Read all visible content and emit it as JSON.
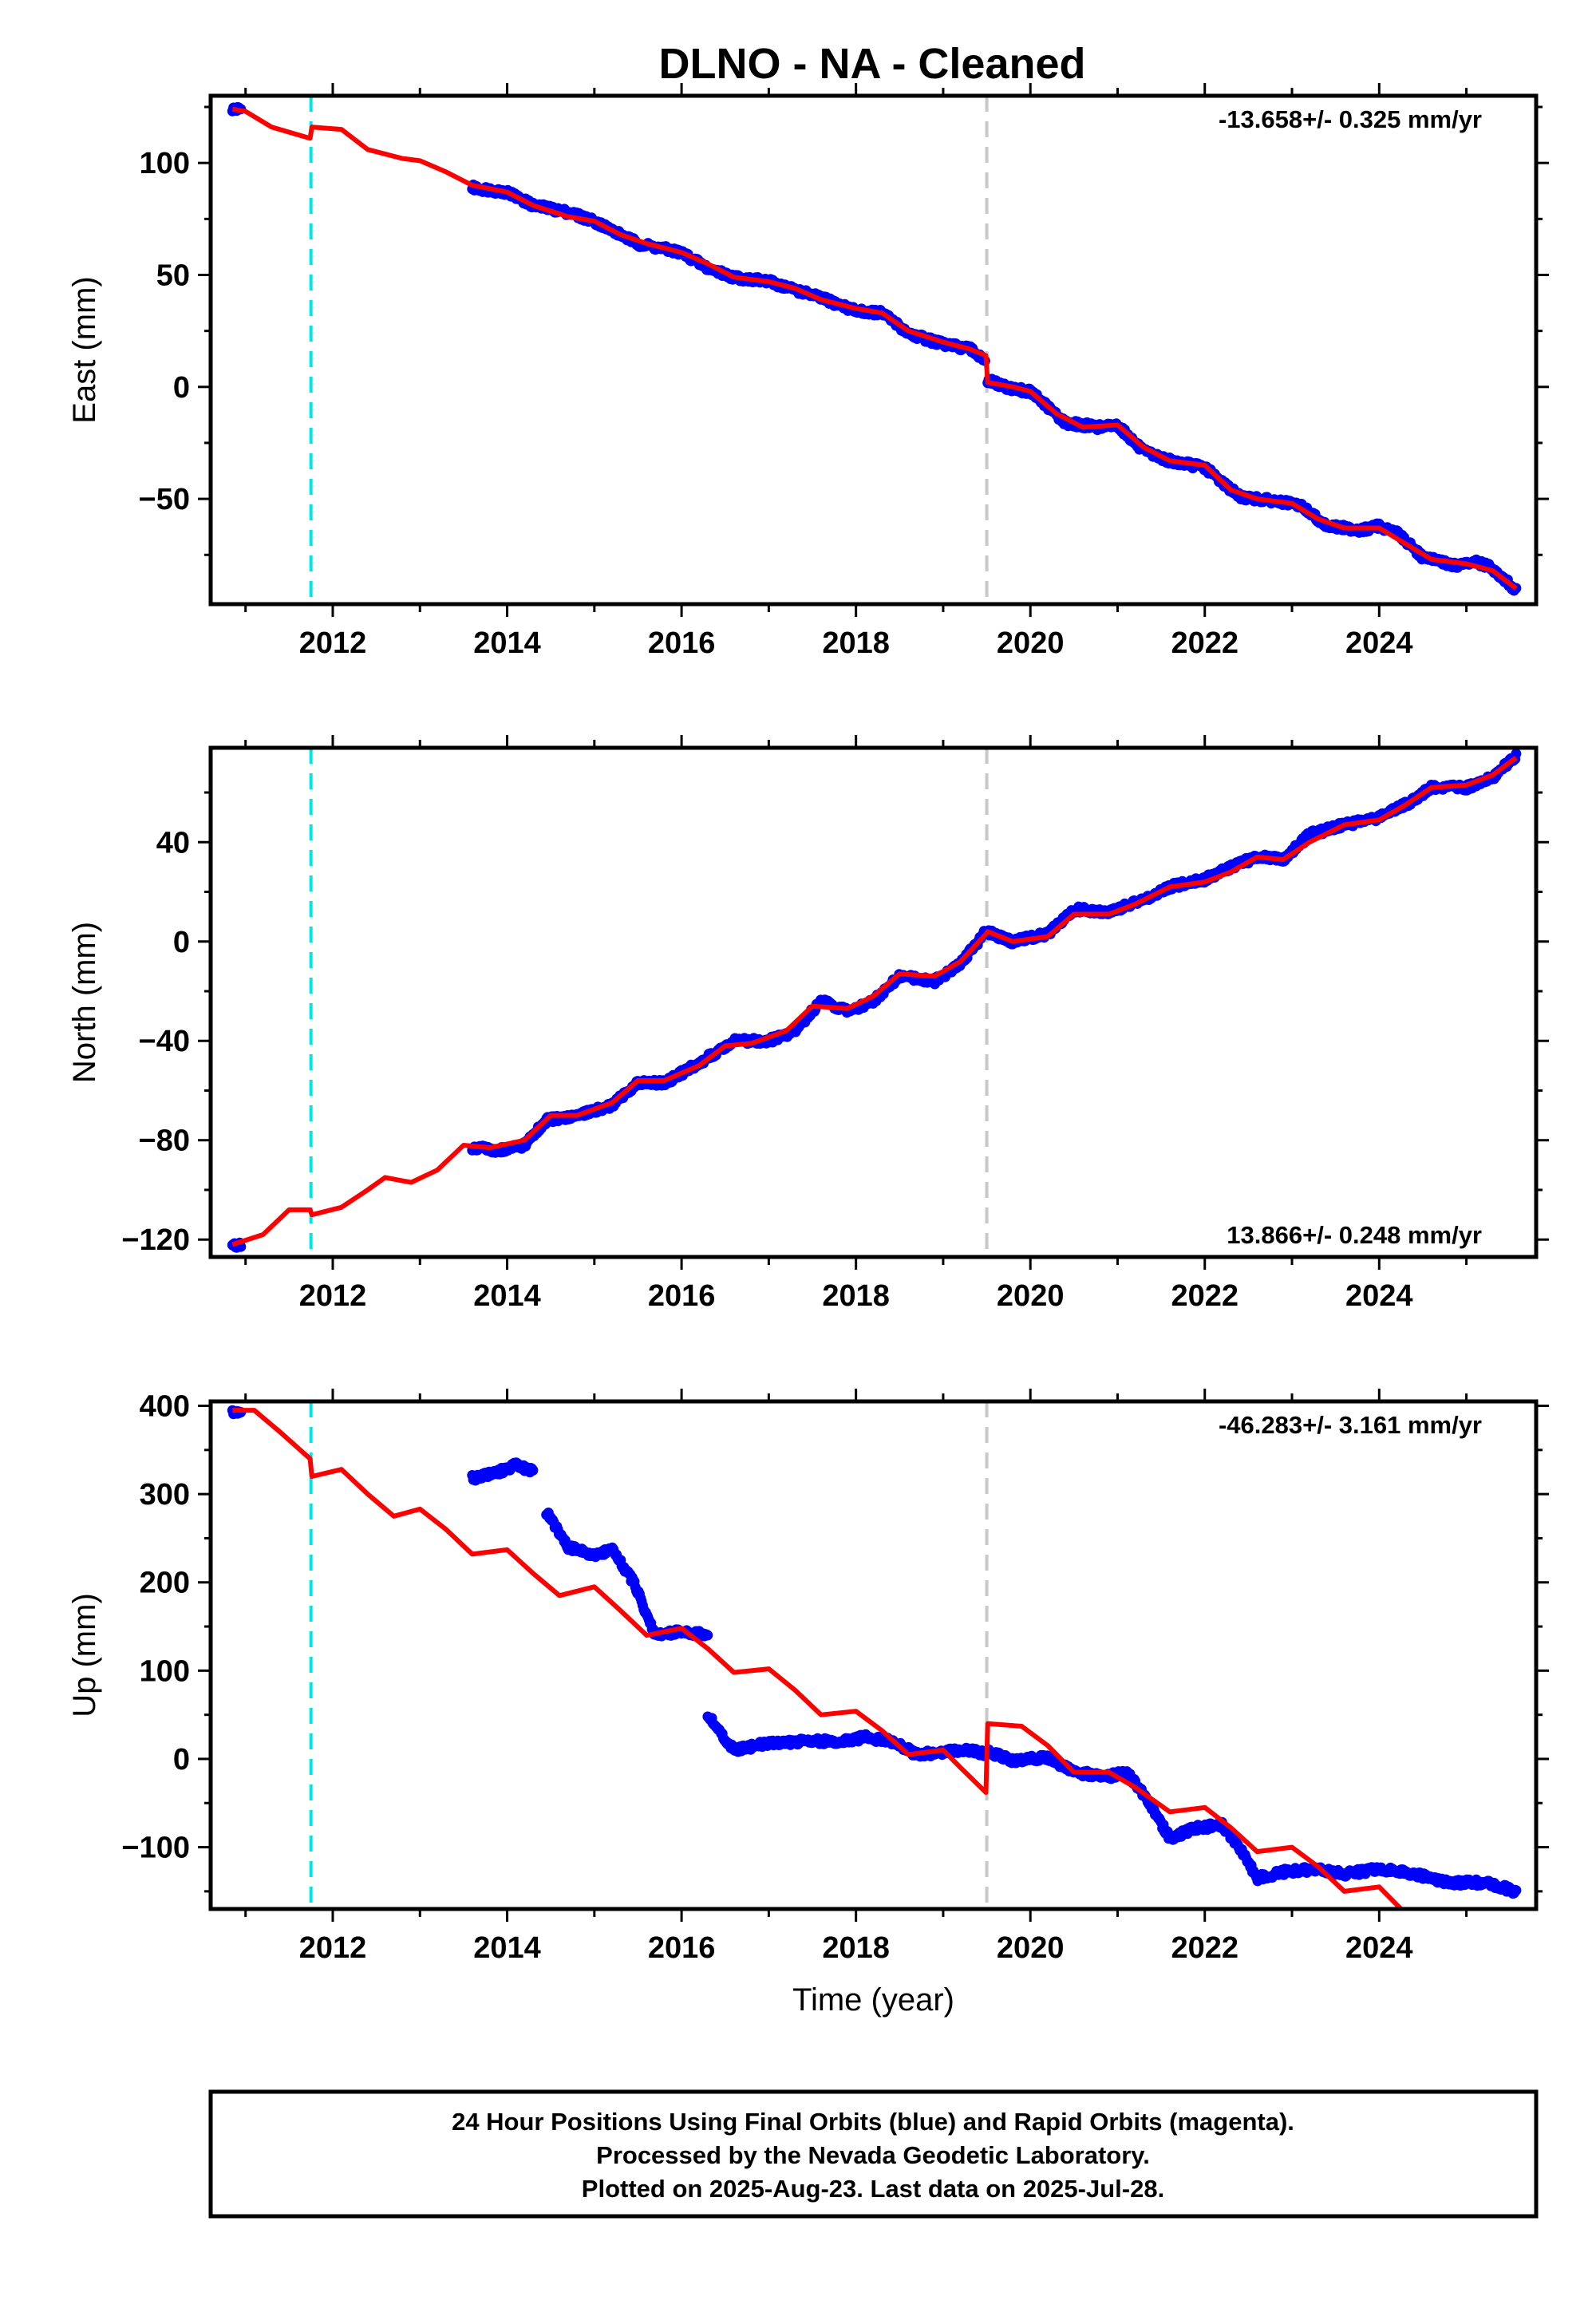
{
  "title": "DLNO  - NA - Cleaned",
  "colors": {
    "final_orbits": "#0000ff",
    "model": "#ff0000",
    "equipment_change": "#00e5e5",
    "other_offset": "#c8c8c8",
    "frame": "#000000"
  },
  "footer": {
    "line1": "24 Hour Positions Using Final Orbits (blue) and Rapid Orbits (magenta).",
    "line2": "Processed by the Nevada Geodetic Laboratory.",
    "line3": "Plotted on 2025-Aug-23. Last data on 2025-Jul-28."
  },
  "chart_data": [
    {
      "type": "scatter",
      "component": "east",
      "ylabel": "East (mm)",
      "xlabel": "",
      "xlim": [
        2010.6,
        2025.8
      ],
      "ylim": [
        -97,
        130
      ],
      "yticks": [
        -50,
        0,
        50,
        100
      ],
      "xticks": [
        2012,
        2014,
        2016,
        2018,
        2020,
        2022,
        2024
      ],
      "rate_text": "-13.658+/- 0.325 mm/yr",
      "rate_position": "top-right",
      "offsets": {
        "equipment_change": 2011.75,
        "other": 2019.5
      },
      "data_segments": [
        [
          [
            2010.85,
            124
          ],
          [
            2010.95,
            124
          ]
        ],
        [
          [
            2013.6,
            89
          ],
          [
            2014.0,
            87
          ],
          [
            2014.3,
            81
          ],
          [
            2014.7,
            78
          ],
          [
            2015.0,
            74
          ],
          [
            2015.5,
            64
          ],
          [
            2016.0,
            60
          ],
          [
            2016.3,
            53
          ],
          [
            2016.6,
            49
          ],
          [
            2017.0,
            47
          ],
          [
            2017.5,
            41
          ],
          [
            2018.0,
            34
          ],
          [
            2018.3,
            33
          ],
          [
            2018.6,
            24
          ],
          [
            2019.0,
            19
          ],
          [
            2019.3,
            17
          ],
          [
            2019.49,
            12
          ]
        ],
        [
          [
            2019.51,
            3
          ],
          [
            2019.8,
            -1
          ],
          [
            2020.0,
            -2
          ],
          [
            2020.4,
            -16
          ],
          [
            2020.8,
            -18
          ],
          [
            2021.0,
            -17
          ],
          [
            2021.3,
            -29
          ],
          [
            2021.6,
            -33
          ],
          [
            2022.0,
            -36
          ],
          [
            2022.4,
            -49
          ],
          [
            2022.8,
            -51
          ],
          [
            2023.1,
            -53
          ],
          [
            2023.4,
            -62
          ],
          [
            2023.8,
            -64
          ],
          [
            2024.0,
            -62
          ],
          [
            2024.2,
            -65
          ],
          [
            2024.5,
            -76
          ],
          [
            2024.9,
            -80
          ],
          [
            2025.1,
            -78
          ],
          [
            2025.3,
            -81
          ],
          [
            2025.57,
            -91
          ]
        ]
      ],
      "model": [
        [
          2010.85,
          124
        ],
        [
          2011.0,
          123
        ],
        [
          2011.3,
          116
        ],
        [
          2011.74,
          111
        ],
        [
          2011.76,
          116
        ],
        [
          2012.1,
          115
        ],
        [
          2012.4,
          106
        ],
        [
          2012.8,
          102
        ],
        [
          2013.0,
          101
        ],
        [
          2013.3,
          96
        ],
        [
          2013.6,
          90
        ],
        [
          2014.0,
          87
        ],
        [
          2014.3,
          81
        ],
        [
          2014.7,
          76
        ],
        [
          2015.0,
          74
        ],
        [
          2015.3,
          68
        ],
        [
          2015.6,
          64
        ],
        [
          2016.0,
          60
        ],
        [
          2016.3,
          55
        ],
        [
          2016.6,
          49
        ],
        [
          2017.0,
          47
        ],
        [
          2017.3,
          44
        ],
        [
          2017.6,
          39
        ],
        [
          2018.0,
          35
        ],
        [
          2018.3,
          33
        ],
        [
          2018.6,
          25
        ],
        [
          2019.0,
          20
        ],
        [
          2019.3,
          17
        ],
        [
          2019.49,
          14
        ],
        [
          2019.51,
          2
        ],
        [
          2019.8,
          0
        ],
        [
          2020.0,
          -2
        ],
        [
          2020.3,
          -12
        ],
        [
          2020.6,
          -18
        ],
        [
          2021.0,
          -17
        ],
        [
          2021.3,
          -27
        ],
        [
          2021.6,
          -33
        ],
        [
          2022.0,
          -35
        ],
        [
          2022.3,
          -46
        ],
        [
          2022.6,
          -50
        ],
        [
          2023.0,
          -52
        ],
        [
          2023.3,
          -59
        ],
        [
          2023.6,
          -63
        ],
        [
          2024.0,
          -63
        ],
        [
          2024.3,
          -70
        ],
        [
          2024.6,
          -77
        ],
        [
          2025.0,
          -79
        ],
        [
          2025.3,
          -82
        ],
        [
          2025.57,
          -90
        ]
      ]
    },
    {
      "type": "scatter",
      "component": "north",
      "ylabel": "North (mm)",
      "xlabel": "",
      "xlim": [
        2010.6,
        2025.8
      ],
      "ylim": [
        -127,
        78
      ],
      "yticks": [
        -120,
        -80,
        -40,
        0,
        40
      ],
      "xticks": [
        2012,
        2014,
        2016,
        2018,
        2020,
        2022,
        2024
      ],
      "rate_text": "13.866+/- 0.248 mm/yr",
      "rate_position": "bottom-right",
      "offsets": {
        "equipment_change": 2011.75,
        "other": 2019.5
      },
      "data_segments": [
        [
          [
            2010.85,
            -122
          ],
          [
            2010.95,
            -122
          ]
        ],
        [
          [
            2013.6,
            -83
          ],
          [
            2013.9,
            -84
          ],
          [
            2014.2,
            -82
          ],
          [
            2014.45,
            -72
          ],
          [
            2014.8,
            -70
          ],
          [
            2015.2,
            -66
          ],
          [
            2015.5,
            -57
          ],
          [
            2015.8,
            -57
          ],
          [
            2016.2,
            -49
          ],
          [
            2016.6,
            -40
          ],
          [
            2017.0,
            -40
          ],
          [
            2017.3,
            -36
          ],
          [
            2017.6,
            -24
          ],
          [
            2017.9,
            -28
          ],
          [
            2018.2,
            -24
          ],
          [
            2018.5,
            -14
          ],
          [
            2018.9,
            -16
          ],
          [
            2019.2,
            -9
          ],
          [
            2019.49,
            4
          ]
        ],
        [
          [
            2019.51,
            4
          ],
          [
            2019.8,
            0
          ],
          [
            2020.2,
            3
          ],
          [
            2020.5,
            13
          ],
          [
            2020.9,
            12
          ],
          [
            2021.3,
            17
          ],
          [
            2021.6,
            22
          ],
          [
            2022.0,
            25
          ],
          [
            2022.3,
            30
          ],
          [
            2022.6,
            34
          ],
          [
            2022.9,
            33
          ],
          [
            2023.2,
            43
          ],
          [
            2023.6,
            47
          ],
          [
            2024.0,
            50
          ],
          [
            2024.3,
            55
          ],
          [
            2024.6,
            62
          ],
          [
            2025.0,
            62
          ],
          [
            2025.3,
            66
          ],
          [
            2025.57,
            75
          ]
        ]
      ],
      "model": [
        [
          2010.85,
          -122
        ],
        [
          2011.2,
          -118
        ],
        [
          2011.5,
          -108
        ],
        [
          2011.74,
          -108
        ],
        [
          2011.76,
          -110
        ],
        [
          2012.1,
          -107
        ],
        [
          2012.4,
          -100
        ],
        [
          2012.6,
          -95
        ],
        [
          2012.9,
          -97
        ],
        [
          2013.2,
          -92
        ],
        [
          2013.5,
          -82
        ],
        [
          2013.8,
          -83
        ],
        [
          2014.2,
          -80
        ],
        [
          2014.5,
          -70
        ],
        [
          2014.8,
          -70
        ],
        [
          2015.2,
          -65
        ],
        [
          2015.5,
          -56
        ],
        [
          2015.8,
          -56
        ],
        [
          2016.2,
          -50
        ],
        [
          2016.5,
          -42
        ],
        [
          2016.8,
          -41
        ],
        [
          2017.2,
          -36
        ],
        [
          2017.5,
          -26
        ],
        [
          2017.9,
          -27
        ],
        [
          2018.2,
          -22
        ],
        [
          2018.5,
          -13
        ],
        [
          2018.9,
          -14
        ],
        [
          2019.2,
          -8
        ],
        [
          2019.49,
          3
        ],
        [
          2019.51,
          4
        ],
        [
          2019.8,
          0
        ],
        [
          2020.2,
          2
        ],
        [
          2020.5,
          11
        ],
        [
          2020.9,
          11
        ],
        [
          2021.2,
          15
        ],
        [
          2021.6,
          22
        ],
        [
          2022.0,
          24
        ],
        [
          2022.3,
          28
        ],
        [
          2022.6,
          34
        ],
        [
          2022.9,
          33
        ],
        [
          2023.2,
          40
        ],
        [
          2023.6,
          47
        ],
        [
          2024.0,
          49
        ],
        [
          2024.3,
          55
        ],
        [
          2024.6,
          62
        ],
        [
          2025.0,
          63
        ],
        [
          2025.3,
          67
        ],
        [
          2025.57,
          74
        ]
      ]
    },
    {
      "type": "scatter",
      "component": "up",
      "ylabel": "Up (mm)",
      "xlabel": "Time (year)",
      "xlim": [
        2010.6,
        2025.8
      ],
      "ylim": [
        -170,
        405
      ],
      "yticks": [
        -100,
        0,
        100,
        200,
        300,
        400
      ],
      "xticks": [
        2012,
        2014,
        2016,
        2018,
        2020,
        2022,
        2024
      ],
      "rate_text": "-46.283+/- 3.161 mm/yr",
      "rate_position": "top-right",
      "offsets": {
        "equipment_change": 2011.75,
        "other": 2019.5
      },
      "data_segments": [
        [
          [
            2010.85,
            393
          ],
          [
            2010.95,
            393
          ]
        ],
        [
          [
            2013.6,
            318
          ],
          [
            2013.9,
            325
          ],
          [
            2014.1,
            333
          ],
          [
            2014.3,
            325
          ]
        ],
        [
          [
            2014.45,
            280
          ],
          [
            2014.7,
            240
          ],
          [
            2015.0,
            230
          ],
          [
            2015.2,
            238
          ],
          [
            2015.45,
            200
          ],
          [
            2015.7,
            140
          ],
          [
            2016.0,
            145
          ],
          [
            2016.3,
            140
          ]
        ],
        [
          [
            2016.3,
            50
          ],
          [
            2016.6,
            10
          ],
          [
            2017.0,
            18
          ],
          [
            2017.5,
            20
          ],
          [
            2017.9,
            20
          ],
          [
            2018.1,
            25
          ],
          [
            2018.4,
            20
          ],
          [
            2018.7,
            5
          ],
          [
            2019.0,
            8
          ],
          [
            2019.3,
            10
          ],
          [
            2019.49,
            5
          ]
        ],
        [
          [
            2019.51,
            8
          ],
          [
            2019.8,
            -2
          ],
          [
            2020.2,
            2
          ],
          [
            2020.5,
            -15
          ],
          [
            2020.9,
            -20
          ],
          [
            2021.1,
            -15
          ],
          [
            2021.3,
            -40
          ],
          [
            2021.6,
            -90
          ],
          [
            2021.9,
            -78
          ],
          [
            2022.2,
            -75
          ],
          [
            2022.4,
            -100
          ],
          [
            2022.6,
            -135
          ],
          [
            2022.9,
            -128
          ],
          [
            2023.3,
            -125
          ],
          [
            2023.6,
            -130
          ],
          [
            2024.0,
            -125
          ],
          [
            2024.4,
            -130
          ],
          [
            2024.8,
            -140
          ],
          [
            2025.2,
            -140
          ],
          [
            2025.57,
            -150
          ]
        ]
      ],
      "model": [
        [
          2010.85,
          395
        ],
        [
          2011.1,
          395
        ],
        [
          2011.4,
          370
        ],
        [
          2011.74,
          340
        ],
        [
          2011.76,
          320
        ],
        [
          2012.1,
          328
        ],
        [
          2012.4,
          300
        ],
        [
          2012.7,
          275
        ],
        [
          2013.0,
          283
        ],
        [
          2013.3,
          260
        ],
        [
          2013.6,
          232
        ],
        [
          2014.0,
          237
        ],
        [
          2014.3,
          210
        ],
        [
          2014.6,
          185
        ],
        [
          2015.0,
          195
        ],
        [
          2015.3,
          168
        ],
        [
          2015.6,
          140
        ],
        [
          2016.0,
          148
        ],
        [
          2016.3,
          125
        ],
        [
          2016.6,
          98
        ],
        [
          2017.0,
          102
        ],
        [
          2017.3,
          78
        ],
        [
          2017.6,
          50
        ],
        [
          2018.0,
          54
        ],
        [
          2018.3,
          32
        ],
        [
          2018.6,
          5
        ],
        [
          2019.0,
          10
        ],
        [
          2019.2,
          -10
        ],
        [
          2019.49,
          -38
        ],
        [
          2019.51,
          40
        ],
        [
          2019.9,
          37
        ],
        [
          2020.2,
          15
        ],
        [
          2020.5,
          -15
        ],
        [
          2020.9,
          -15
        ],
        [
          2021.2,
          -32
        ],
        [
          2021.6,
          -60
        ],
        [
          2022.0,
          -55
        ],
        [
          2022.3,
          -78
        ],
        [
          2022.6,
          -105
        ],
        [
          2023.0,
          -100
        ],
        [
          2023.3,
          -122
        ],
        [
          2023.6,
          -150
        ],
        [
          2024.0,
          -145
        ],
        [
          2024.3,
          -175
        ]
      ]
    }
  ]
}
